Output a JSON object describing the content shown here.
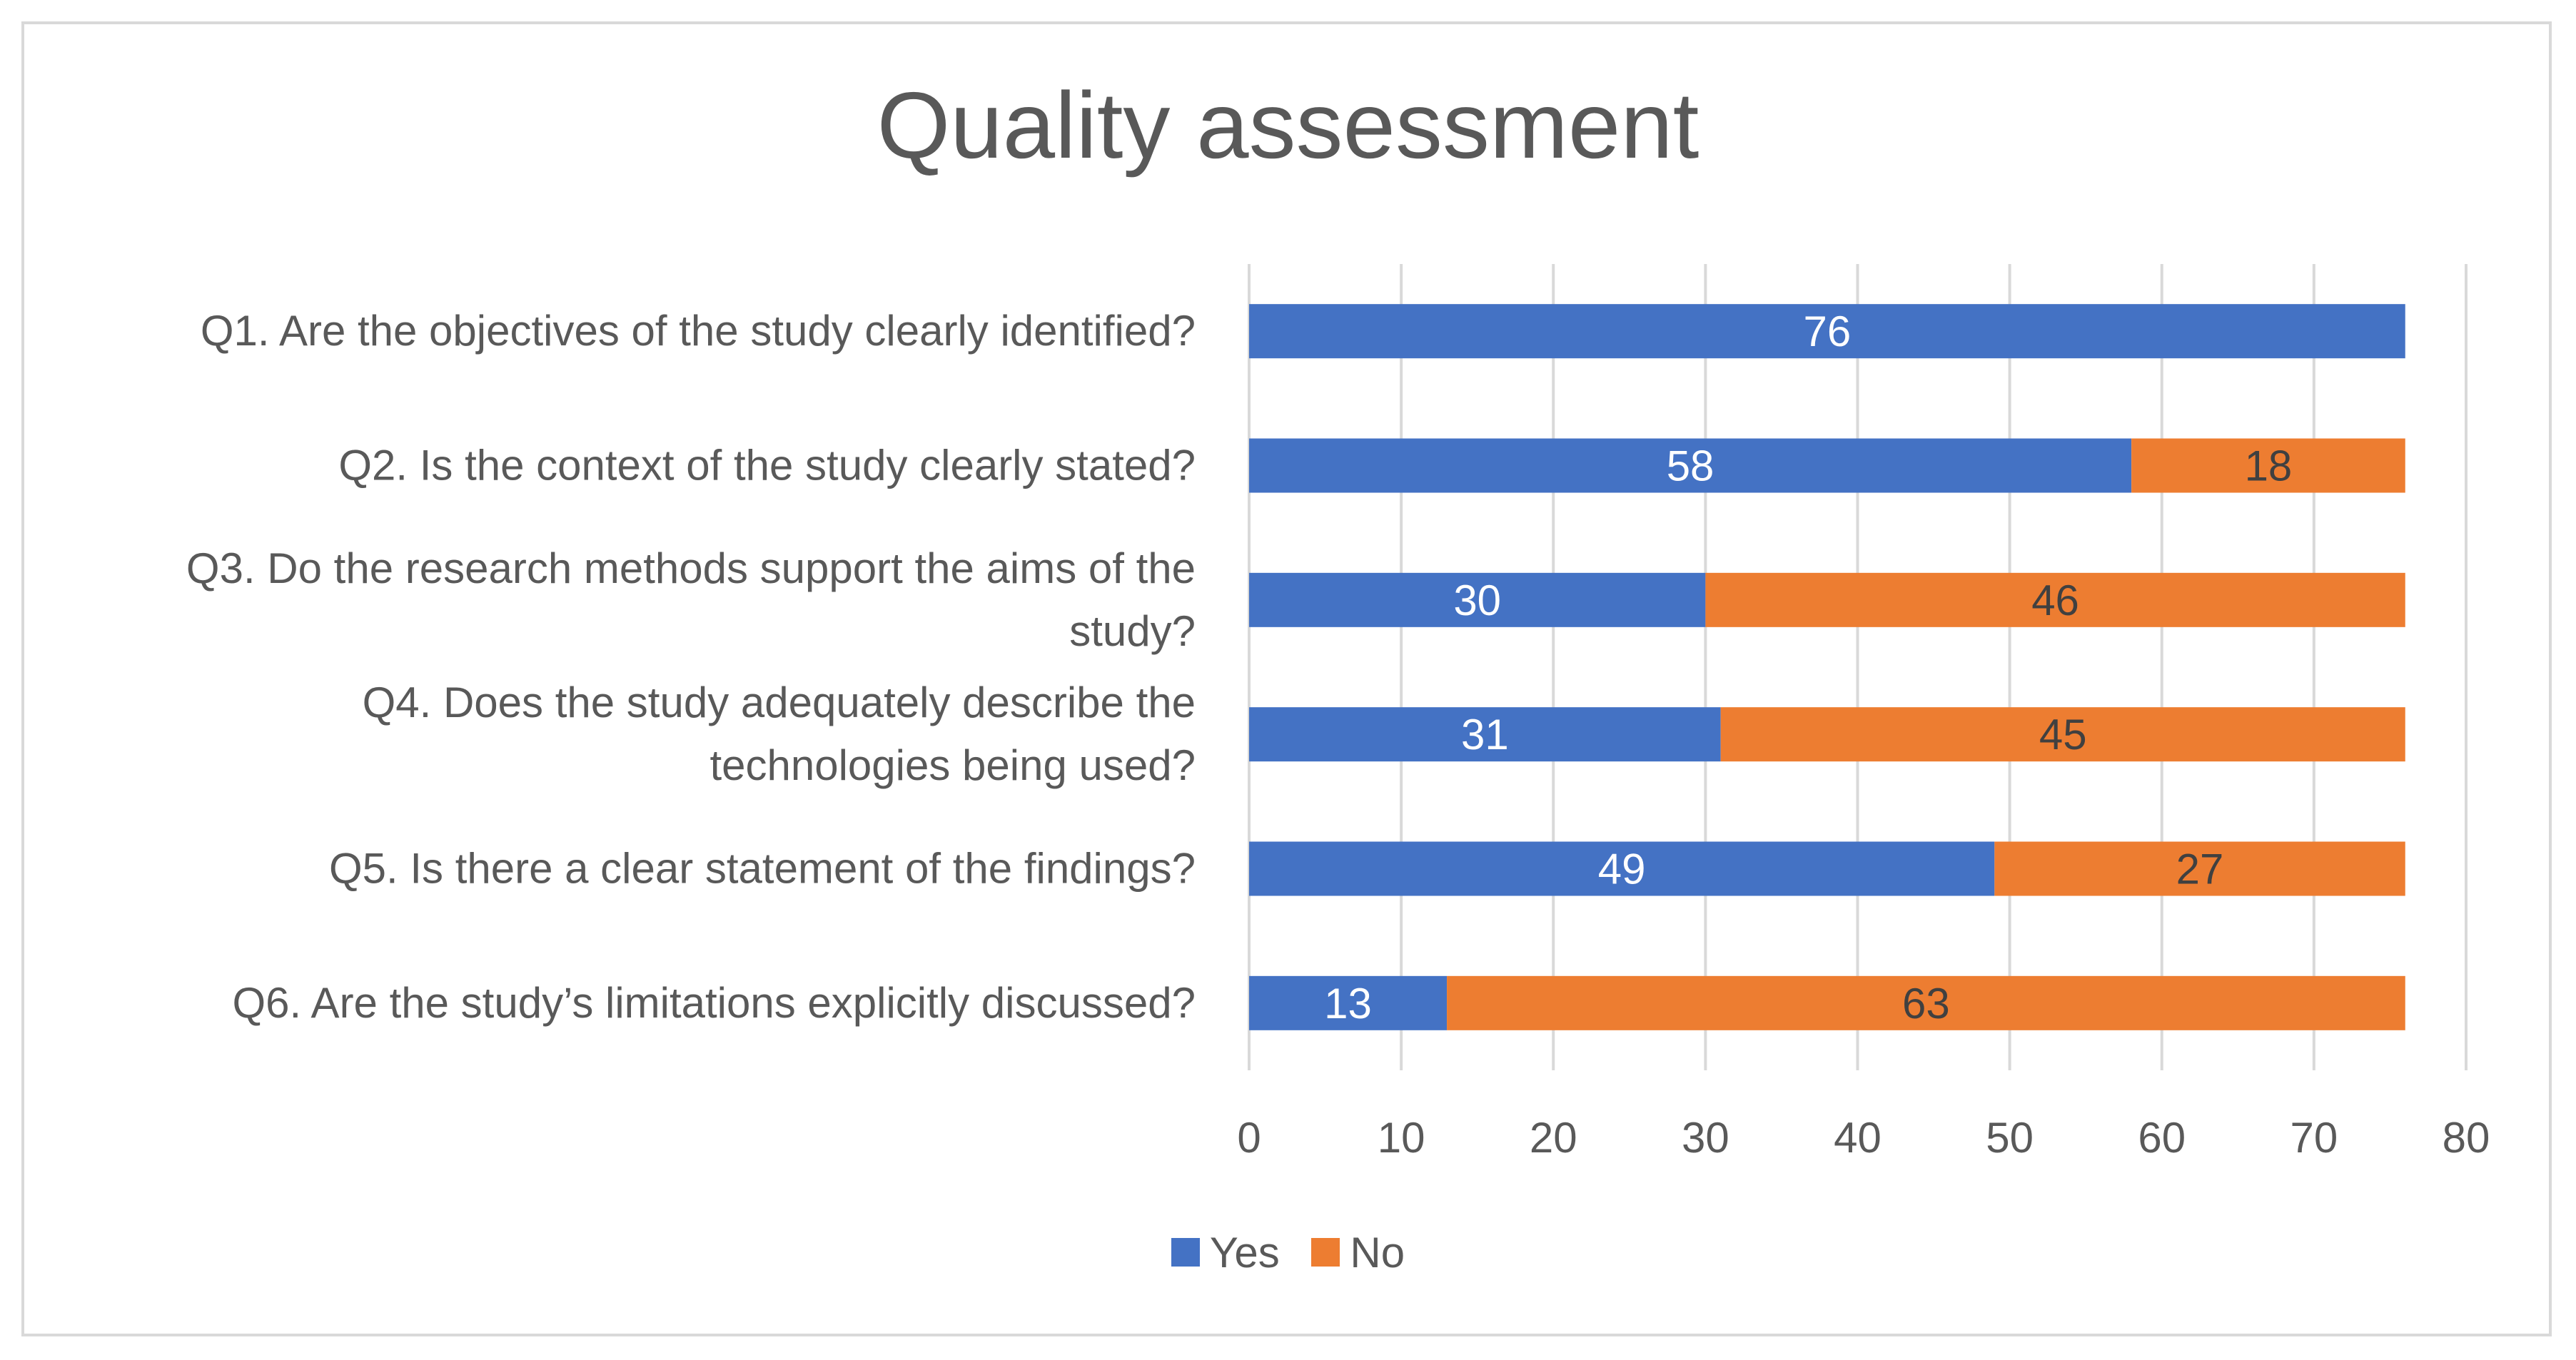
{
  "chart_data": {
    "type": "bar",
    "orientation": "horizontal",
    "stacked": true,
    "title": "Quality assessment",
    "categories": [
      [
        "Q1. Are the objectives of the study clearly identified?"
      ],
      [
        "Q2. Is the context of the study clearly stated?"
      ],
      [
        "Q3. Do the research methods support the aims of the",
        "study?"
      ],
      [
        "Q4. Does the study adequately describe the",
        "technologies being used?"
      ],
      [
        "Q5. Is there a clear statement of the findings?"
      ],
      [
        "Q6. Are the study’s limitations explicitly discussed?"
      ]
    ],
    "series": [
      {
        "name": "Yes",
        "color": "#4472c4",
        "label_color": "#ffffff",
        "values": [
          76,
          58,
          30,
          31,
          49,
          13
        ]
      },
      {
        "name": "No",
        "color": "#ed7d31",
        "label_color": "#404040",
        "values": [
          0,
          18,
          46,
          45,
          27,
          63
        ]
      }
    ],
    "xlim": [
      0,
      80
    ],
    "xticks": [
      "0",
      "10",
      "20",
      "30",
      "40",
      "50",
      "60",
      "70",
      "80"
    ],
    "grid": true,
    "legend_position": "bottom"
  }
}
